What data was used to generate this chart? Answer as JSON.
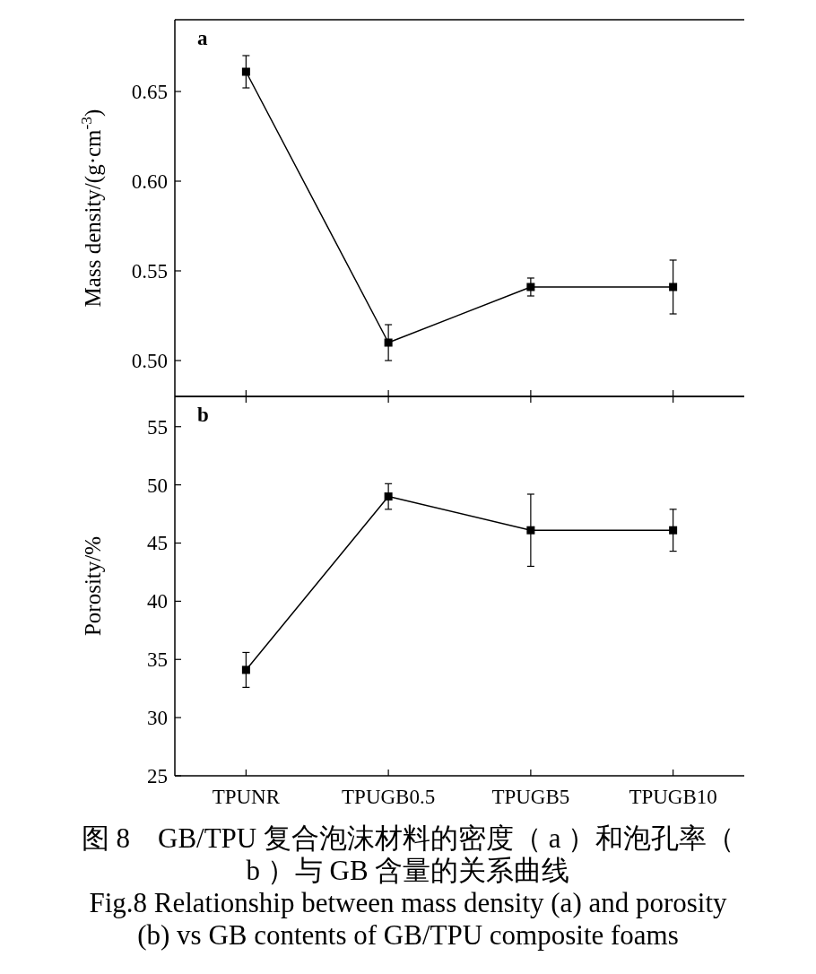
{
  "chart_data": [
    {
      "type": "line",
      "title": "a",
      "ylabel": "Mass density/(g·cm$^{-3}$)",
      "categories": [
        null,
        null,
        null,
        null
      ],
      "series": [
        {
          "color": "#000000",
          "values": [
            0.661,
            0.51,
            0.541,
            0.541
          ],
          "errors": [
            0.009,
            0.01,
            0.005,
            0.015
          ]
        }
      ],
      "ylim": [
        0.48,
        0.69
      ],
      "yticks": [
        {
          "value": 0.5,
          "label": "0.50"
        },
        0.55,
        {
          "value": 0.6,
          "label": "0.60"
        },
        0.65
      ],
      "tick_labels": "y",
      "marker": "square",
      "line_style": "solid",
      "grid": false
    },
    {
      "type": "line",
      "title": "b",
      "ylabel": "Porosity/%",
      "categories": [
        "TPUNR",
        "TPUGB0.5",
        "TPUGB5",
        "TPUGB10"
      ],
      "series": [
        {
          "color": "#000000",
          "values": [
            34.1,
            49,
            46.1,
            46.1
          ],
          "errors": [
            1.5,
            1.1,
            3.1,
            1.8
          ]
        }
      ],
      "ylim": [
        25,
        57.6
      ],
      "yticks": [
        25,
        30,
        35,
        40,
        45,
        50,
        55
      ],
      "marker": "square",
      "line_style": "solid",
      "grid": false,
      "annotations": [
        "图 8　GB/TPU 复合泡沫材料的密度（ a ）和泡孔率（ b ）与 GB 含量的关系曲线",
        "Fig.8 Relationship between mass density (a) and porosity (b) vs GB contents of GB/TPU composite foams"
      ]
    }
  ]
}
